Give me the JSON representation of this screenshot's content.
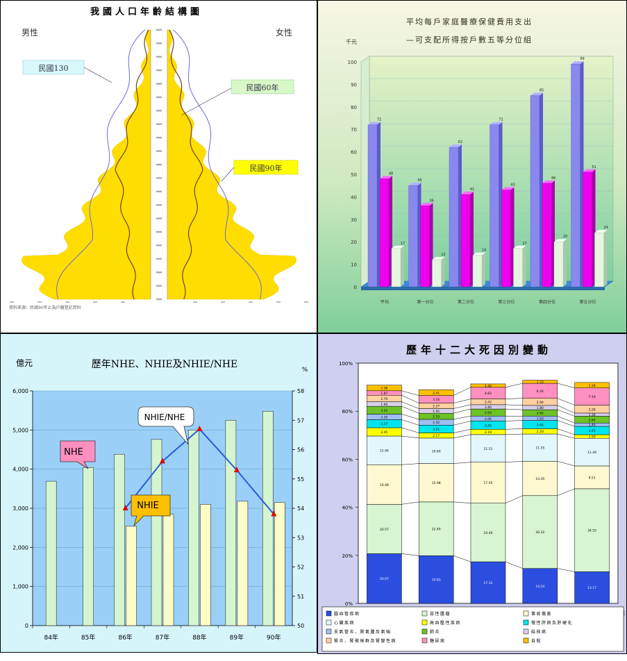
{
  "chart_data": [
    {
      "type": "area",
      "title": "我國人口年齡結構圖",
      "male_label": "男性",
      "female_label": "女性",
      "series": [
        {
          "name": "民國130"
        },
        {
          "name": "民國60年"
        },
        {
          "name": "民國90年"
        }
      ],
      "footnote": "資料來源：民國90年止為戶籍登記資料"
    },
    {
      "type": "bar",
      "title": "平均每戶家庭醫療保健費用支出",
      "subtitle": "—可支配所得按戶數五等分位組",
      "ylabel": "千元",
      "ylim": [
        0,
        100
      ],
      "yticks": [
        0,
        10,
        20,
        30,
        40,
        50,
        60,
        70,
        80,
        90,
        100
      ],
      "categories": [
        "平均",
        "第一分位",
        "第二分位",
        "第三分位",
        "第四分位",
        "第五分位"
      ],
      "series": [
        {
          "values": [
            72,
            45,
            62,
            72,
            85,
            99
          ]
        },
        {
          "values": [
            48,
            36,
            41,
            43,
            46,
            51
          ]
        },
        {
          "values": [
            17,
            12,
            14,
            17,
            20,
            24
          ]
        }
      ]
    },
    {
      "type": "bar",
      "title": "歷年NHE、NHIE及NHIE/NHE",
      "ylabel_left": "億元",
      "ylabel_right": "%",
      "ylim_left": [
        0,
        6000
      ],
      "yticks_left": [
        "0",
        "1,000",
        "2,000",
        "3,000",
        "4,000",
        "5,000",
        "6,000"
      ],
      "ylim_right": [
        50,
        58
      ],
      "yticks_right": [
        "50",
        "51",
        "52",
        "53",
        "54",
        "55",
        "56",
        "57",
        "58"
      ],
      "categories": [
        "84年",
        "85年",
        "86年",
        "87年",
        "88年",
        "89年",
        "90年"
      ],
      "series": [
        {
          "name": "NHE",
          "values": [
            3690,
            4040,
            4380,
            4760,
            5000,
            5250,
            5480
          ]
        },
        {
          "name": "NHIE",
          "values": [
            null,
            null,
            2540,
            2850,
            3100,
            3180,
            3150
          ]
        },
        {
          "name": "NHIE/NHE",
          "type": "line",
          "axis": "right",
          "values": [
            null,
            null,
            54.0,
            55.6,
            56.7,
            55.3,
            53.8
          ]
        }
      ],
      "callouts": [
        "NHE",
        "NHIE/NHE",
        "NHIE"
      ]
    },
    {
      "type": "bar",
      "stacked": true,
      "title": "歷年十二大死因別變動",
      "categories": [
        "70",
        "75",
        "80",
        "85",
        "90"
      ],
      "xunit": "年",
      "yticks": [
        "0%",
        "20%",
        "40%",
        "60%",
        "80%",
        "100%"
      ],
      "series": [
        {
          "name": "腦血管疾病",
          "color": "#2b4ee0",
          "values": [
            20.67,
            19.83,
            17.31,
            14.54,
            13.17
          ]
        },
        {
          "name": "惡性腫瘤",
          "color": "#d6f5d0",
          "values": [
            20.57,
            22.4,
            24.4,
            30.32,
            34.55
          ]
        },
        {
          "name": "事故傷害",
          "color": "#fff8d0",
          "values": [
            16.48,
            15.98,
            17.05,
            14.3,
            9.51
          ]
        },
        {
          "name": "心臟疾病",
          "color": "#e2f7fa",
          "values": [
            11.94,
            10.6,
            11.51,
            11.35,
            11.49
          ]
        },
        {
          "name": "高血壓性疾病",
          "color": "#ffff00",
          "values": [
            3.45,
            2.17,
            2.19,
            2.2,
            1.5
          ]
        },
        {
          "name": "慢性肝病及肝硬化",
          "color": "#00e5ee",
          "values": [
            3.37,
            3.21,
            3.45,
            3.42,
            3.45
          ]
        },
        {
          "name": "支氣管炎、肺氣腫及氣喘",
          "color": "#9fbff0",
          "values": [
            2.3,
            2.42,
            2.06,
            1.83,
            1.4
          ]
        },
        {
          "name": "肺炎",
          "color": "#6cc227",
          "values": [
            3.25,
            2.53,
            2.93,
            2.65,
            2.84
          ]
        },
        {
          "name": "結核病",
          "color": "#d8cfea",
          "values": [
            1.9,
            1.95,
            1.8,
            1.8,
            1.3
          ]
        },
        {
          "name": "腎炎、腎徵候群及腎變性病",
          "color": "#ffd0a0",
          "values": [
            2.7,
            2.27,
            2.42,
            2.94,
            3.28
          ]
        },
        {
          "name": "糖尿病",
          "color": "#ff90c0",
          "values": [
            1.87,
            3.16,
            4.83,
            6.24,
            7.19
          ]
        },
        {
          "name": "自殺",
          "color": "#ffc000",
          "values": [
            2.36,
            2.41,
            1.4,
            1.33,
            2.28
          ]
        }
      ]
    }
  ]
}
